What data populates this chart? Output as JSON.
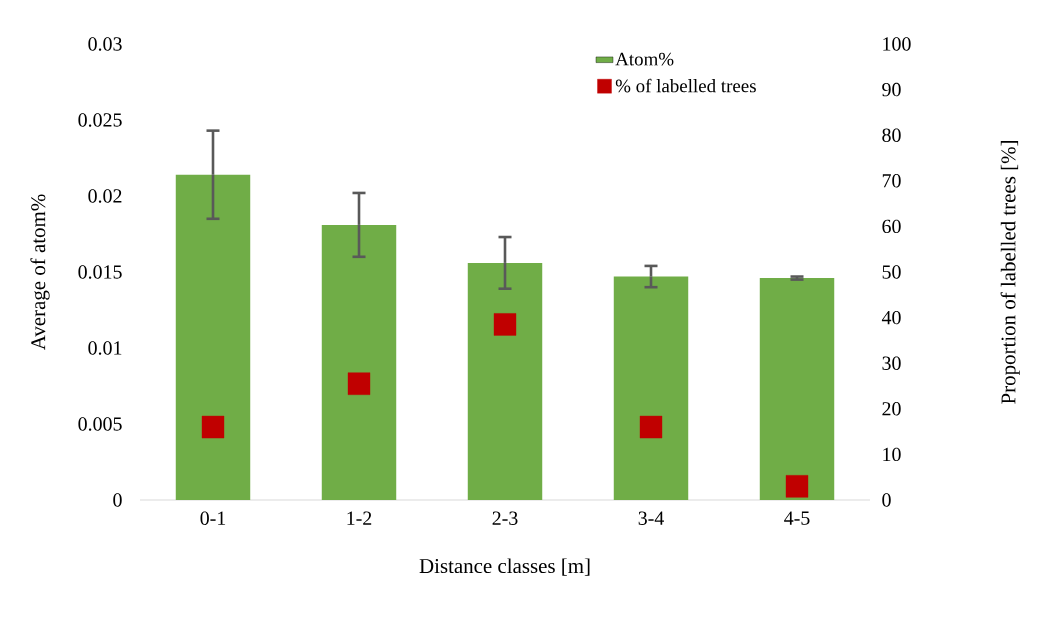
{
  "chart_data": {
    "type": "bar",
    "xlabel": "Distance classes [m]",
    "ylabel": "Average of atom%",
    "y2label": "Proportion of labelled trees [%]",
    "categories": [
      "0-1",
      "1-2",
      "2-3",
      "3-4",
      "4-5"
    ],
    "series": [
      {
        "name": "Atom%",
        "color": "#70ad47",
        "values": [
          0.0214,
          0.0181,
          0.0156,
          0.0147,
          0.0146
        ],
        "errors": [
          0.0029,
          0.0021,
          0.0017,
          0.0007,
          0.0001
        ]
      },
      {
        "name": "% of labelled trees",
        "type": "scatter",
        "axis": "y2",
        "marker": "square",
        "color": "#c00000",
        "values": [
          16,
          25.5,
          38.5,
          16,
          3
        ]
      }
    ],
    "ylim": [
      0,
      0.03
    ],
    "yticks": [
      0,
      0.005,
      0.01,
      0.015,
      0.02,
      0.025,
      0.03
    ],
    "y2lim": [
      0,
      100
    ],
    "y2ticks": [
      0,
      10,
      20,
      30,
      40,
      50,
      60,
      70,
      80,
      90,
      100
    ],
    "legend": "top right",
    "grid": false
  }
}
